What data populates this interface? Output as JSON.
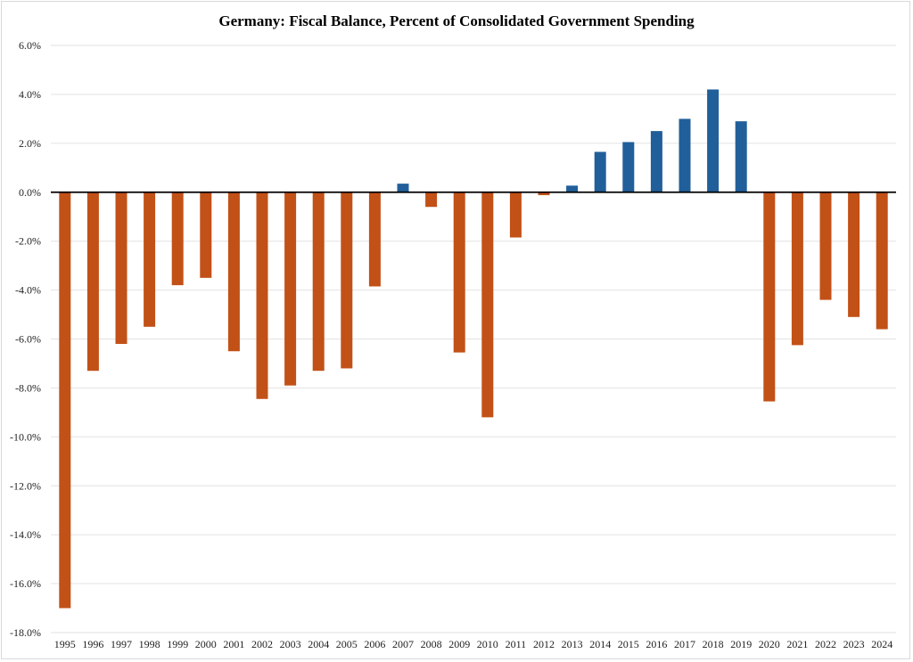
{
  "chart_data": {
    "type": "bar",
    "title": "Germany: Fiscal Balance, Percent of Consolidated Government Spending",
    "xlabel": "",
    "ylabel": "",
    "ylim": [
      -18,
      6
    ],
    "yticks": [
      6,
      4,
      2,
      0,
      -2,
      -4,
      -6,
      -8,
      -10,
      -12,
      -14,
      -16,
      -18
    ],
    "ytick_labels": [
      "6.0%",
      "4.0%",
      "2.0%",
      "0.0%",
      "-2.0%",
      "-4.0%",
      "-6.0%",
      "-8.0%",
      "-10.0%",
      "-12.0%",
      "-14.0%",
      "-16.0%",
      "-18.0%"
    ],
    "grid": true,
    "legend": "none",
    "categories": [
      "1995",
      "1996",
      "1997",
      "1998",
      "1999",
      "2000",
      "2001",
      "2002",
      "2003",
      "2004",
      "2005",
      "2006",
      "2007",
      "2008",
      "2009",
      "2010",
      "2011",
      "2012",
      "2013",
      "2014",
      "2015",
      "2016",
      "2017",
      "2018",
      "2019",
      "2020",
      "2021",
      "2022",
      "2023",
      "2024"
    ],
    "values": [
      -17.0,
      -7.3,
      -6.2,
      -5.5,
      -3.8,
      -3.5,
      -6.5,
      -8.45,
      -7.9,
      -7.3,
      -7.2,
      -3.85,
      0.35,
      -0.6,
      -6.55,
      -9.2,
      -1.85,
      -0.12,
      0.27,
      1.65,
      2.05,
      2.5,
      3.0,
      4.2,
      2.9,
      -8.55,
      -6.25,
      -4.4,
      -5.1,
      -5.6
    ],
    "colors": {
      "positive": "#215f9a",
      "negative": "#c25117",
      "gridline": "#e6e6e6",
      "zero_line": "#000000"
    }
  }
}
